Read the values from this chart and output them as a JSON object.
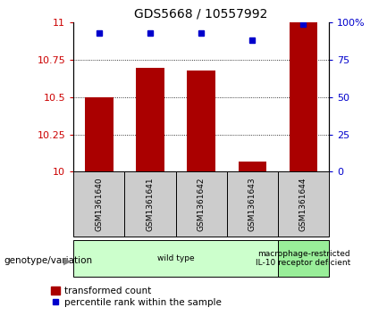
{
  "title": "GDS5668 / 10557992",
  "samples": [
    "GSM1361640",
    "GSM1361641",
    "GSM1361642",
    "GSM1361643",
    "GSM1361644"
  ],
  "transformed_counts": [
    10.5,
    10.7,
    10.68,
    10.07,
    11.0
  ],
  "percentile_ranks": [
    93,
    93,
    93,
    88,
    99
  ],
  "ylim_left": [
    10.0,
    11.0
  ],
  "ylim_right": [
    0,
    100
  ],
  "yticks_left": [
    10.0,
    10.25,
    10.5,
    10.75,
    11.0
  ],
  "ytick_labels_left": [
    "10",
    "10.25",
    "10.5",
    "10.75",
    "11"
  ],
  "yticks_right": [
    0,
    25,
    50,
    75,
    100
  ],
  "ytick_labels_right": [
    "0",
    "25",
    "50",
    "75",
    "100%"
  ],
  "bar_color": "#AA0000",
  "dot_color": "#0000CC",
  "bar_base": 10.0,
  "grid_yticks": [
    10.25,
    10.5,
    10.75
  ],
  "groups": [
    {
      "label": "wild type",
      "samples": [
        0,
        1,
        2,
        3
      ],
      "color": "#ccffcc"
    },
    {
      "label": "macrophage-restricted\nIL-10 receptor deficient",
      "samples": [
        4
      ],
      "color": "#99ee99"
    }
  ],
  "legend_items": [
    {
      "color": "#AA0000",
      "label": "transformed count"
    },
    {
      "color": "#0000CC",
      "label": "percentile rank within the sample"
    }
  ],
  "genotype_label": "genotype/variation",
  "background_color": "#ffffff",
  "plot_bg_color": "#ffffff",
  "sample_bg_color": "#cccccc",
  "bar_width": 0.55
}
